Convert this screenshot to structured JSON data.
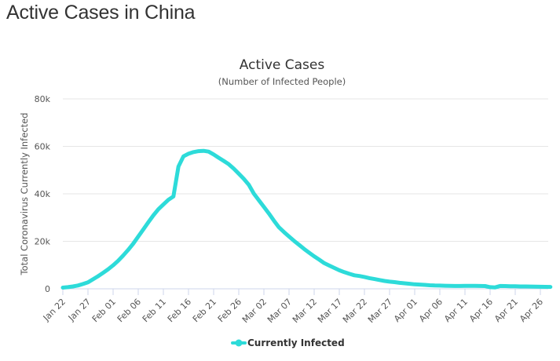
{
  "page": {
    "title": "Active Cases in China"
  },
  "chart_data": {
    "type": "line",
    "title": "Active Cases",
    "subtitle": "(Number of Infected People)",
    "xlabel": "",
    "ylabel": "Total Coronavirus Currently Infected",
    "x_start": "2020-01-22",
    "x_ticks": [
      "Jan 22",
      "Jan 27",
      "Feb 01",
      "Feb 06",
      "Feb 11",
      "Feb 16",
      "Feb 21",
      "Feb 26",
      "Mar 02",
      "Mar 07",
      "Mar 12",
      "Mar 17",
      "Mar 22",
      "Mar 27",
      "Apr 01",
      "Apr 06",
      "Apr 11",
      "Apr 16",
      "Apr 21",
      "Apr 26"
    ],
    "y_ticks": [
      "0",
      "20k",
      "40k",
      "60k",
      "80k"
    ],
    "ylim": [
      0,
      80000
    ],
    "grid": true,
    "legend_position": "bottom",
    "colors": {
      "series": "#2ddbd9",
      "grid": "#e6e6e6",
      "axis": "#ccd6eb"
    },
    "series": [
      {
        "name": "Currently Infected",
        "x": [
          "Jan 22",
          "Jan 23",
          "Jan 24",
          "Jan 25",
          "Jan 26",
          "Jan 27",
          "Jan 28",
          "Jan 29",
          "Jan 30",
          "Jan 31",
          "Feb 01",
          "Feb 02",
          "Feb 03",
          "Feb 04",
          "Feb 05",
          "Feb 06",
          "Feb 07",
          "Feb 08",
          "Feb 09",
          "Feb 10",
          "Feb 11",
          "Feb 12",
          "Feb 13",
          "Feb 14",
          "Feb 15",
          "Feb 16",
          "Feb 17",
          "Feb 18",
          "Feb 19",
          "Feb 20",
          "Feb 21",
          "Feb 22",
          "Feb 23",
          "Feb 24",
          "Feb 25",
          "Feb 26",
          "Feb 27",
          "Feb 28",
          "Feb 29",
          "Mar 01",
          "Mar 02",
          "Mar 03",
          "Mar 04",
          "Mar 05",
          "Mar 06",
          "Mar 07",
          "Mar 08",
          "Mar 09",
          "Mar 10",
          "Mar 11",
          "Mar 12",
          "Mar 13",
          "Mar 14",
          "Mar 15",
          "Mar 16",
          "Mar 17",
          "Mar 18",
          "Mar 19",
          "Mar 20",
          "Mar 21",
          "Mar 22",
          "Mar 23",
          "Mar 24",
          "Mar 25",
          "Mar 26",
          "Mar 27",
          "Mar 28",
          "Mar 29",
          "Mar 30",
          "Mar 31",
          "Apr 01",
          "Apr 02",
          "Apr 03",
          "Apr 04",
          "Apr 05",
          "Apr 06",
          "Apr 07",
          "Apr 08",
          "Apr 09",
          "Apr 10",
          "Apr 11",
          "Apr 12",
          "Apr 13",
          "Apr 14",
          "Apr 15",
          "Apr 16",
          "Apr 17",
          "Apr 18",
          "Apr 19",
          "Apr 20",
          "Apr 21",
          "Apr 22",
          "Apr 23",
          "Apr 24",
          "Apr 25",
          "Apr 26",
          "Apr 27",
          "Apr 28"
        ],
        "values": [
          500,
          700,
          1000,
          1400,
          2000,
          2700,
          4000,
          5300,
          6700,
          8200,
          9900,
          11800,
          14000,
          16400,
          19000,
          22000,
          25000,
          28000,
          30900,
          33500,
          35500,
          37500,
          38900,
          51500,
          55800,
          56900,
          57600,
          58000,
          58100,
          57800,
          56600,
          55200,
          53900,
          52500,
          50600,
          48500,
          46300,
          43800,
          40100,
          37300,
          34500,
          31700,
          28700,
          25900,
          23900,
          22000,
          20200,
          18500,
          16800,
          15200,
          13700,
          12300,
          10800,
          9800,
          8800,
          7800,
          7000,
          6300,
          5700,
          5400,
          5000,
          4500,
          4100,
          3700,
          3300,
          3000,
          2800,
          2500,
          2300,
          2100,
          1900,
          1800,
          1650,
          1500,
          1400,
          1350,
          1300,
          1250,
          1200,
          1200,
          1250,
          1250,
          1250,
          1200,
          1150,
          700,
          600,
          1200,
          1150,
          1100,
          1050,
          1000,
          980,
          950,
          900,
          850,
          820,
          780
        ]
      }
    ]
  }
}
